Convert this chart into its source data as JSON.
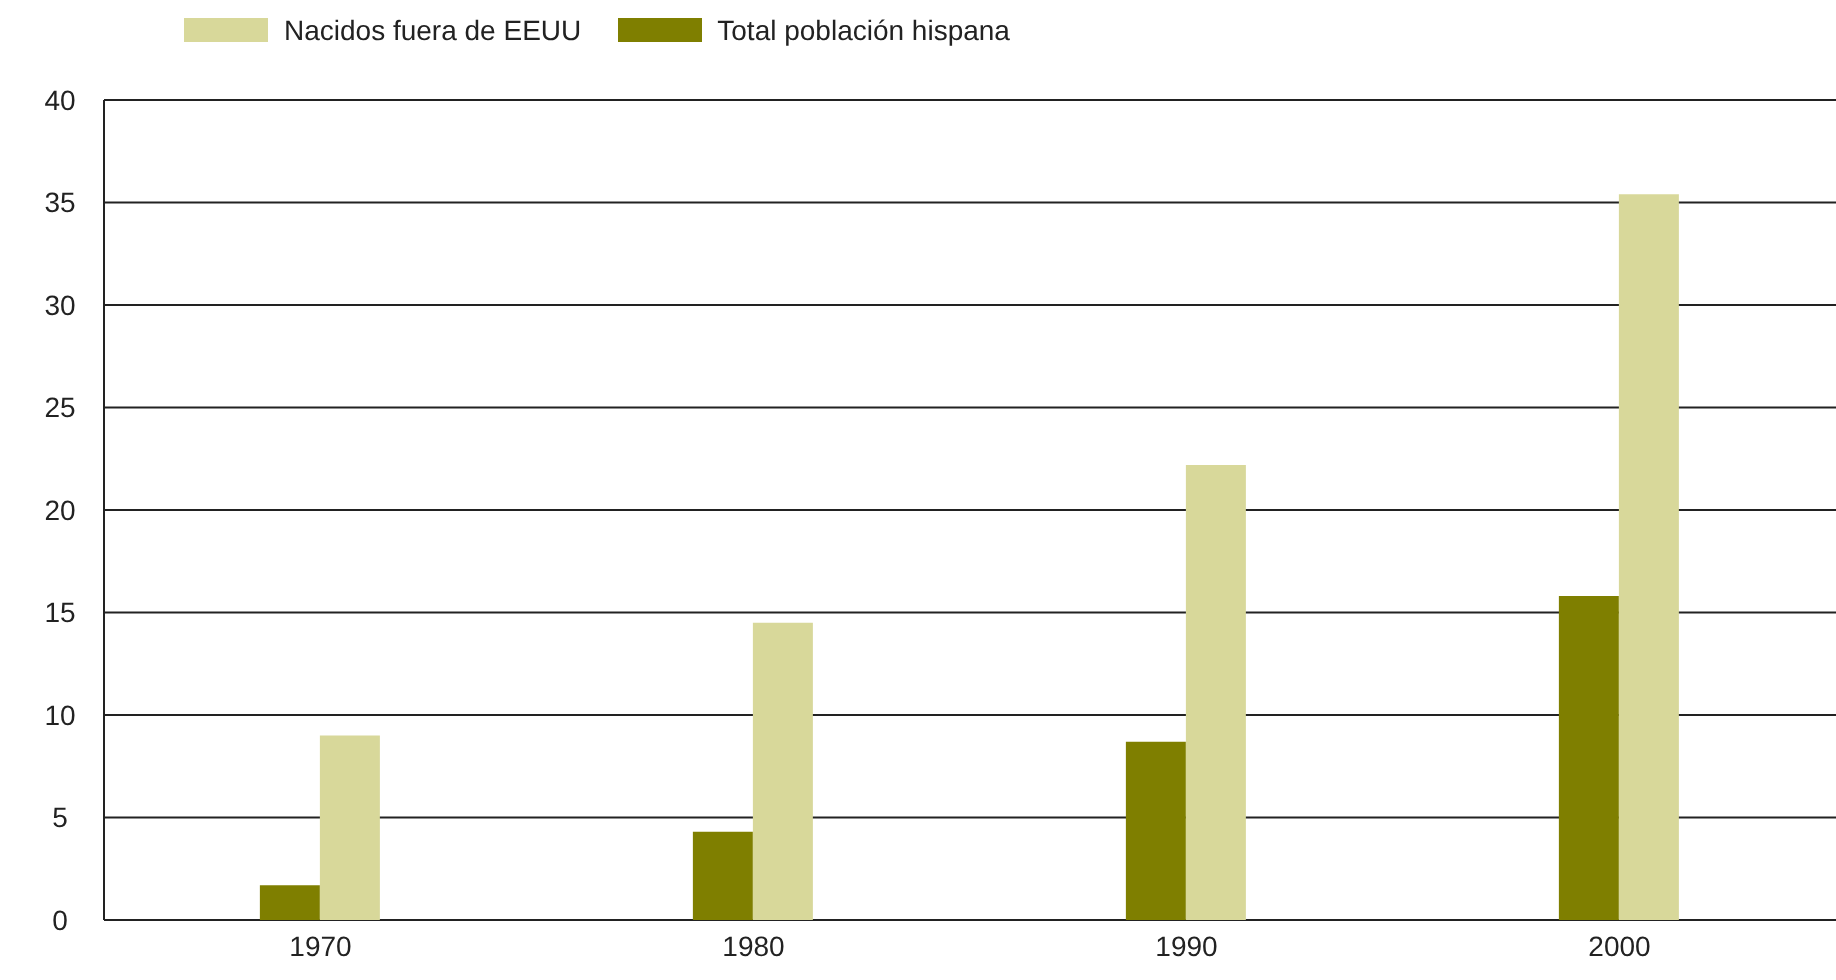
{
  "chart_data": {
    "type": "bar",
    "categories": [
      "1970",
      "1980",
      "1990",
      "2000"
    ],
    "series": [
      {
        "name": "Nacidos fuera de EEUU",
        "color": "#d8d89a",
        "values": [
          9.0,
          14.5,
          22.2,
          35.4
        ]
      },
      {
        "name": "Total población hispana",
        "color": "#7f7f00",
        "values": [
          1.7,
          4.3,
          8.7,
          15.8
        ]
      }
    ],
    "ylim": [
      0,
      40
    ],
    "yticks": [
      0,
      5,
      10,
      15,
      20,
      25,
      30,
      35,
      40
    ],
    "grid": "y",
    "legend": "top left"
  }
}
